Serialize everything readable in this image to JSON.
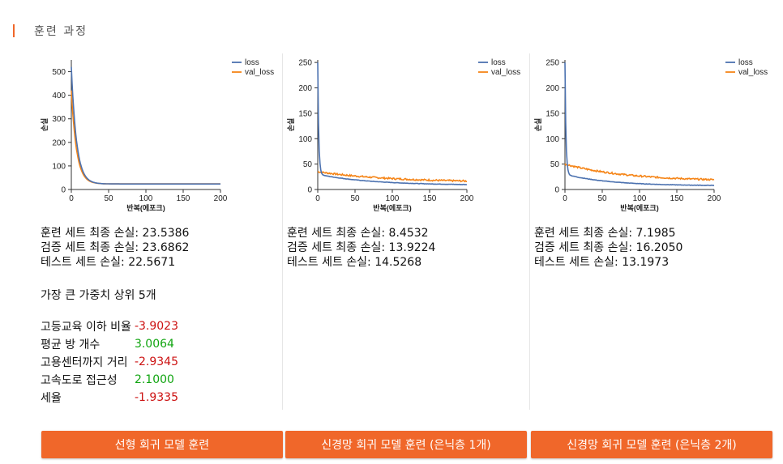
{
  "section": {
    "title": "훈련 과정"
  },
  "charts": [
    {
      "ylim": [
        0,
        550
      ],
      "yticks": [
        0,
        100,
        200,
        300,
        400,
        500
      ],
      "final": {
        "loss": 23.5,
        "val": 23.7
      },
      "peak": {
        "loss": 520,
        "val": 420
      },
      "decay": 6,
      "valGap": 0
    },
    {
      "ylim": [
        0,
        255
      ],
      "yticks": [
        0,
        50,
        100,
        150,
        200,
        250
      ],
      "final": {
        "loss": 8.5,
        "val": 13.9
      },
      "peak": {
        "loss": 250,
        "val": 35
      },
      "decay": 70,
      "valGap": 1
    },
    {
      "ylim": [
        0,
        255
      ],
      "yticks": [
        0,
        50,
        100,
        150,
        200,
        250
      ],
      "final": {
        "loss": 7.2,
        "val": 16.2
      },
      "peak": {
        "loss": 250,
        "val": 50
      },
      "decay": 60,
      "valGap": 1
    }
  ],
  "chart_data": [
    {
      "type": "line",
      "xlabel": "반복(에포크)",
      "ylabel": "손실",
      "xlim": [
        0,
        200
      ],
      "ylim": [
        0,
        550
      ],
      "xticks": [
        0,
        50,
        100,
        150,
        200
      ],
      "series": [
        {
          "name": "loss",
          "color": "#4c72b0",
          "x": [
            0,
            5,
            10,
            20,
            30,
            50,
            100,
            150,
            200
          ],
          "y": [
            520,
            250,
            110,
            40,
            28,
            25,
            24,
            23.8,
            23.5
          ]
        },
        {
          "name": "val_loss",
          "color": "#f58518",
          "x": [
            0,
            5,
            10,
            20,
            30,
            50,
            100,
            150,
            200
          ],
          "y": [
            420,
            220,
            100,
            38,
            27,
            25,
            24.5,
            24,
            23.7
          ]
        }
      ],
      "legend": "top-right"
    },
    {
      "type": "line",
      "xlabel": "반복(에포크)",
      "ylabel": "손실",
      "xlim": [
        0,
        200
      ],
      "ylim": [
        0,
        255
      ],
      "xticks": [
        0,
        50,
        100,
        150,
        200
      ],
      "series": [
        {
          "name": "loss",
          "color": "#4c72b0",
          "x": [
            0,
            2,
            5,
            10,
            25,
            50,
            100,
            150,
            200
          ],
          "y": [
            250,
            60,
            32,
            27,
            23,
            19,
            14,
            11,
            8.5
          ]
        },
        {
          "name": "val_loss",
          "color": "#f58518",
          "x": [
            0,
            2,
            5,
            10,
            25,
            50,
            100,
            150,
            200
          ],
          "y": [
            35,
            32,
            30,
            29,
            27,
            23,
            18,
            16,
            13.9
          ]
        }
      ],
      "legend": "top-right"
    },
    {
      "type": "line",
      "xlabel": "반복(에포크)",
      "ylabel": "손실",
      "xlim": [
        0,
        200
      ],
      "ylim": [
        0,
        255
      ],
      "xticks": [
        0,
        50,
        100,
        150,
        200
      ],
      "series": [
        {
          "name": "loss",
          "color": "#4c72b0",
          "x": [
            0,
            2,
            5,
            10,
            25,
            50,
            100,
            150,
            200
          ],
          "y": [
            250,
            70,
            35,
            25,
            18,
            14,
            10,
            8.5,
            7.2
          ]
        },
        {
          "name": "val_loss",
          "color": "#f58518",
          "x": [
            0,
            2,
            5,
            10,
            25,
            50,
            100,
            150,
            200
          ],
          "y": [
            50,
            38,
            33,
            30,
            27,
            24,
            20,
            18,
            16.2
          ]
        }
      ],
      "legend": "top-right"
    }
  ],
  "results": [
    {
      "train": "훈련 세트 최종 손실: 23.5386",
      "val": "검증 세트 최종 손실: 23.6862",
      "test": "테스트 세트 손실: 22.5671"
    },
    {
      "train": "훈련 세트 최종 손실: 8.4532",
      "val": "검증 세트 최종 손실: 13.9224",
      "test": "테스트 세트 손실: 14.5268"
    },
    {
      "train": "훈련 세트 최종 손실: 7.1985",
      "val": "검증 세트 최종 손실: 16.2050",
      "test": "테스트 세트 손실: 13.1973"
    }
  ],
  "weights": {
    "title": "가장 큰 가중치 상위 5개",
    "items": [
      {
        "label": "고등교육 이하 비율",
        "value": "-3.9023",
        "sign": "neg"
      },
      {
        "label": "평균 방 개수",
        "value": "3.0064",
        "sign": "pos"
      },
      {
        "label": "고용센터까지 거리",
        "value": "-2.9345",
        "sign": "neg"
      },
      {
        "label": "고속도로 접근성",
        "value": "2.1000",
        "sign": "pos"
      },
      {
        "label": "세율",
        "value": "-1.9335",
        "sign": "neg"
      }
    ]
  },
  "buttons": {
    "linear": "선형 회귀 모델 훈련",
    "nn1": "신경망 회귀 모델 훈련 (은닉층 1개)",
    "nn2": "신경망 회귀 모델 훈련 (은닉층 2개)"
  }
}
